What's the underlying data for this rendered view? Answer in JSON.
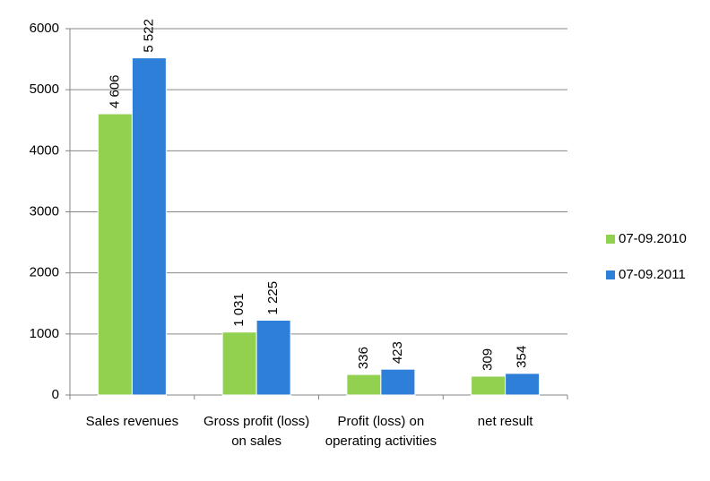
{
  "chart_data": {
    "type": "bar",
    "categories": [
      "Sales revenues",
      "Gross profit (loss) on sales",
      "Profit (loss) on operating activities",
      "net result"
    ],
    "series": [
      {
        "name": "07-09.2010",
        "color": "#92d050",
        "values": [
          4606,
          1031,
          336,
          309
        ],
        "value_labels": [
          "4 606",
          "1 031",
          "336",
          "309"
        ]
      },
      {
        "name": "07-09.2011",
        "color": "#2e7fd8",
        "values": [
          5522,
          1225,
          423,
          354
        ],
        "value_labels": [
          "5 522",
          "1 225",
          "423",
          "354"
        ]
      }
    ],
    "ylim": [
      0,
      6000
    ],
    "yticks": [
      0,
      1000,
      2000,
      3000,
      4000,
      5000,
      6000
    ],
    "grid": true,
    "legend": "right"
  }
}
